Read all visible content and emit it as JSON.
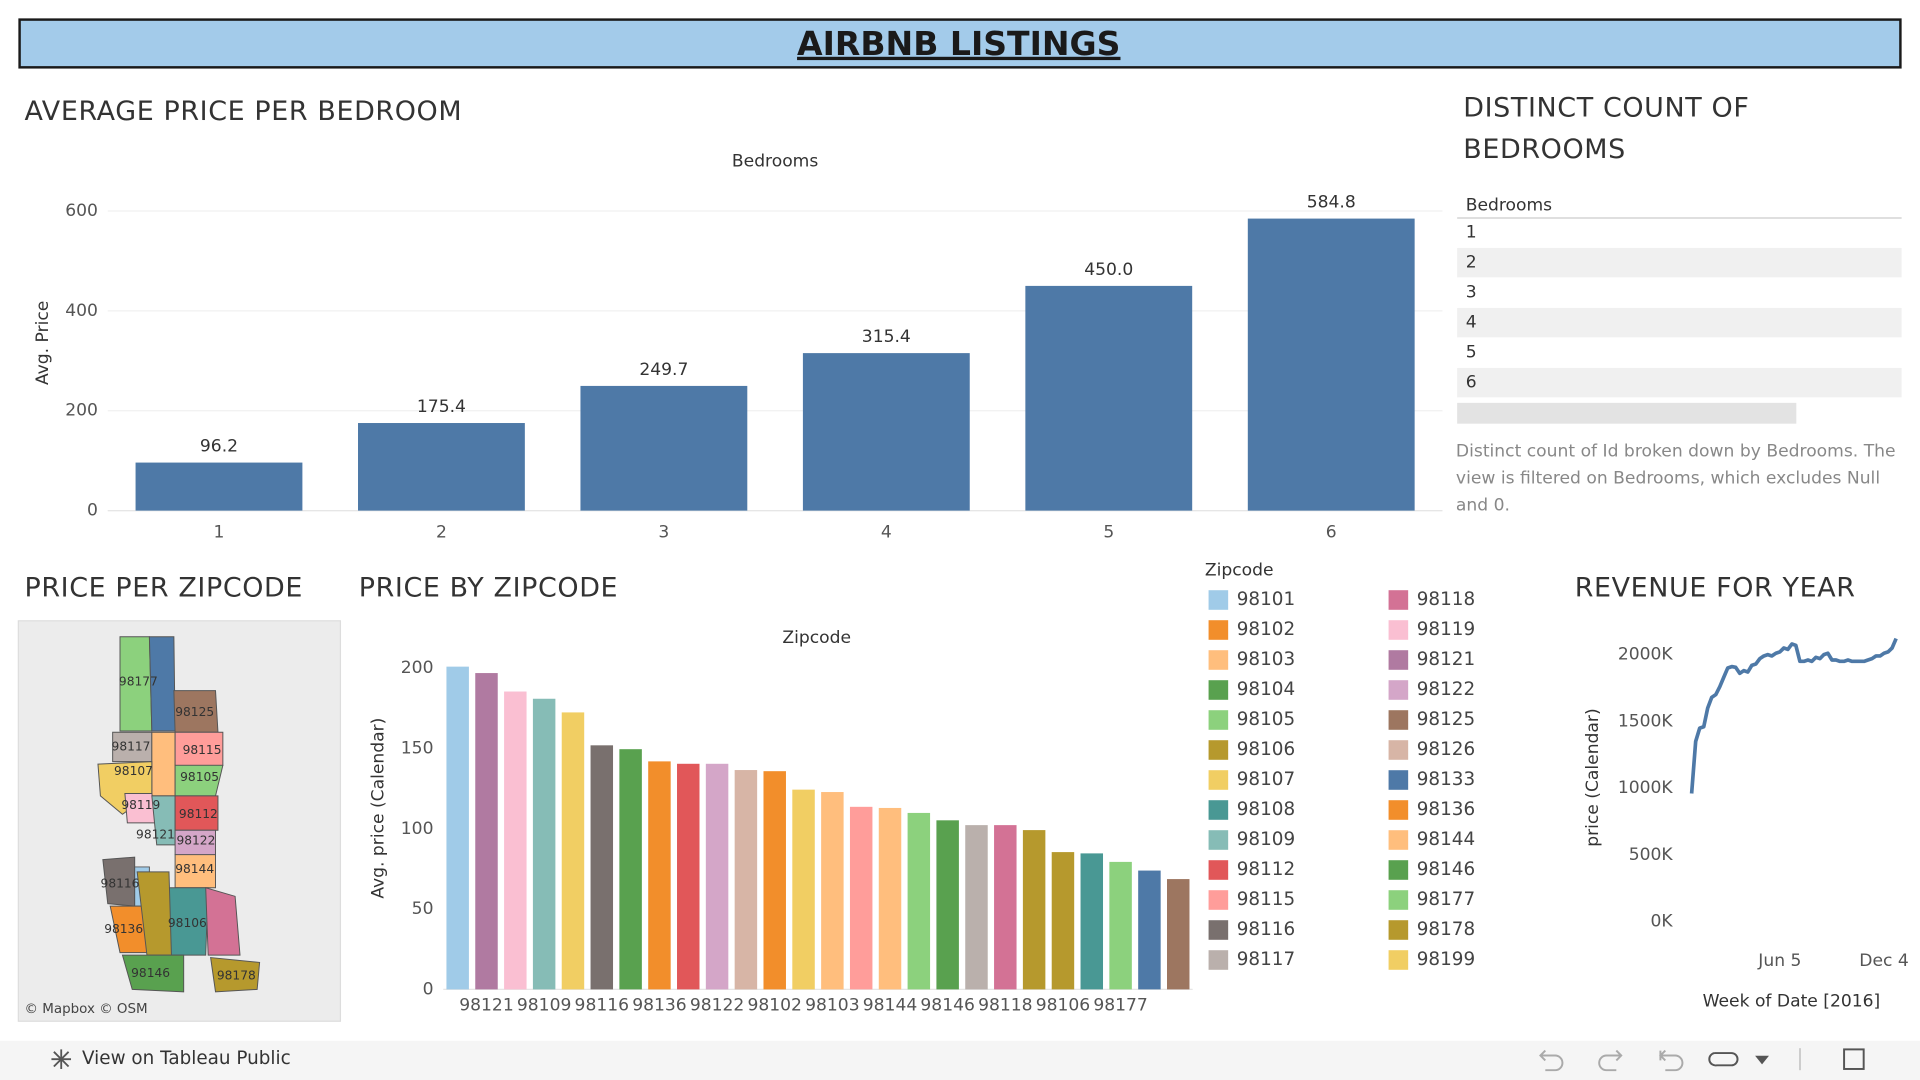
{
  "header": {
    "title": "AIRBNB LISTINGS"
  },
  "chart_data": [
    {
      "type": "bar",
      "title": "AVERAGE PRICE PER BEDROOM",
      "x_label": "Bedrooms",
      "y_label": "Avg. Price",
      "categories": [
        1,
        2,
        3,
        4,
        5,
        6
      ],
      "values": [
        96.2,
        175.4,
        249.7,
        315.4,
        450.0,
        584.8
      ],
      "value_labels": [
        "96.2",
        "175.4",
        "249.7",
        "315.4",
        "450.0",
        "584.8"
      ],
      "color": "#4e79a7",
      "ylim": [
        0,
        640
      ],
      "yticks": [
        0,
        200,
        400,
        600
      ],
      "grid": true
    },
    {
      "type": "bar",
      "title": "PRICE BY ZIPCODE",
      "x_label": "Zipcode",
      "y_label": "Avg. price (Calendar)",
      "categories": [
        null,
        "98121",
        null,
        "98109",
        null,
        "98116",
        null,
        "98136",
        null,
        "98122",
        null,
        "98102",
        null,
        "98103",
        null,
        "98144",
        null,
        "98146",
        null,
        "98118",
        null,
        "98106",
        null,
        "98177",
        null,
        null
      ],
      "values": [
        201,
        197,
        185.5,
        181,
        172.5,
        152,
        149.6,
        142,
        140.5,
        140.5,
        136.6,
        135.9,
        124.4,
        122.9,
        113.7,
        113,
        109.9,
        105.3,
        102.3,
        102.3,
        99.2,
        85.5,
        84.7,
        79.4,
        74,
        68.7
      ],
      "colors": [
        "#a0cbe8",
        "#b07aa1",
        "#fabfd2",
        "#86bcb6",
        "#f1ce63",
        "#79706e",
        "#59a14f",
        "#f28e2b",
        "#e15759",
        "#d4a6c8",
        "#d7b5a6",
        "#f28e2b",
        "#f1ce63",
        "#ffbe7d",
        "#ff9d9a",
        "#ffbe7d",
        "#8cd17d",
        "#59a14f",
        "#bab0ac",
        "#d37295",
        "#b6992d",
        "#b6992d",
        "#499894",
        "#8cd17d",
        "#4e79a7",
        "#9d7660"
      ],
      "ylim": [
        0,
        212
      ],
      "yticks": [
        0,
        50,
        100,
        150,
        200
      ],
      "grid": false,
      "legend_title": "Zipcode",
      "legend": [
        {
          "name": "98101",
          "color": "#a0cbe8"
        },
        {
          "name": "98102",
          "color": "#f28e2b"
        },
        {
          "name": "98103",
          "color": "#ffbe7d"
        },
        {
          "name": "98104",
          "color": "#59a14f"
        },
        {
          "name": "98105",
          "color": "#8cd17d"
        },
        {
          "name": "98106",
          "color": "#b6992d"
        },
        {
          "name": "98107",
          "color": "#f1ce63"
        },
        {
          "name": "98108",
          "color": "#499894"
        },
        {
          "name": "98109",
          "color": "#86bcb6"
        },
        {
          "name": "98112",
          "color": "#e15759"
        },
        {
          "name": "98115",
          "color": "#ff9d9a"
        },
        {
          "name": "98116",
          "color": "#79706e"
        },
        {
          "name": "98117",
          "color": "#bab0ac"
        },
        {
          "name": "98118",
          "color": "#d37295"
        },
        {
          "name": "98119",
          "color": "#fabfd2"
        },
        {
          "name": "98121",
          "color": "#b07aa1"
        },
        {
          "name": "98122",
          "color": "#d4a6c8"
        },
        {
          "name": "98125",
          "color": "#9d7660"
        },
        {
          "name": "98126",
          "color": "#d7b5a6"
        },
        {
          "name": "98133",
          "color": "#4e79a7"
        },
        {
          "name": "98136",
          "color": "#f28e2b"
        },
        {
          "name": "98144",
          "color": "#ffbe7d"
        },
        {
          "name": "98146",
          "color": "#59a14f"
        },
        {
          "name": "98177",
          "color": "#8cd17d"
        },
        {
          "name": "98178",
          "color": "#b6992d"
        },
        {
          "name": "98199",
          "color": "#f1ce63"
        }
      ]
    },
    {
      "type": "line",
      "title": "REVENUE FOR YEAR",
      "x_label": "Week of Date [2016]",
      "y_label": "price (Calendar)",
      "x": [
        "2016-01-03",
        "2016-01-10",
        "2016-01-17",
        "2016-01-24",
        "2016-01-31",
        "2016-02-07",
        "2016-02-14",
        "2016-02-21",
        "2016-02-28",
        "2016-03-06",
        "2016-03-13",
        "2016-03-20",
        "2016-03-27",
        "2016-04-03",
        "2016-04-10",
        "2016-04-17",
        "2016-04-24",
        "2016-05-01",
        "2016-05-08",
        "2016-05-15",
        "2016-05-22",
        "2016-05-29",
        "2016-06-05",
        "2016-06-12",
        "2016-06-19",
        "2016-06-26",
        "2016-07-03",
        "2016-07-10",
        "2016-07-17",
        "2016-07-24",
        "2016-07-31",
        "2016-08-07",
        "2016-08-14",
        "2016-08-21",
        "2016-08-28",
        "2016-09-04",
        "2016-09-11",
        "2016-09-18",
        "2016-09-25",
        "2016-10-02",
        "2016-10-09",
        "2016-10-16",
        "2016-10-23",
        "2016-10-30",
        "2016-11-06",
        "2016-11-13",
        "2016-11-20",
        "2016-11-27",
        "2016-12-04",
        "2016-12-11",
        "2016-12-18",
        "2016-12-25"
      ],
      "values": [
        960000,
        1350000,
        1450000,
        1460000,
        1600000,
        1680000,
        1700000,
        1760000,
        1830000,
        1900000,
        1910000,
        1905000,
        1860000,
        1880000,
        1870000,
        1920000,
        1930000,
        1970000,
        1990000,
        2000000,
        1990000,
        2010000,
        2020000,
        2050000,
        2040000,
        2080000,
        2070000,
        1950000,
        1950000,
        1960000,
        1950000,
        1980000,
        1970000,
        2000000,
        2010000,
        1960000,
        1960000,
        1950000,
        1950000,
        1960000,
        1950000,
        1950000,
        1950000,
        1950000,
        1960000,
        1970000,
        1990000,
        1990000,
        2010000,
        2020000,
        2050000,
        2120000
      ],
      "color": "#4e79a7",
      "xlim": [
        "2015-12-20",
        "2017-01-08"
      ],
      "xticks": [
        {
          "value": "2016-06-05",
          "label": "Jun 5"
        },
        {
          "value": "2016-12-04",
          "label": "Dec 4"
        }
      ],
      "ylim": [
        -140000,
        2180000
      ],
      "yticks": [
        {
          "value": 0,
          "label": "0K"
        },
        {
          "value": 500000,
          "label": "500K"
        },
        {
          "value": 1000000,
          "label": "1000K"
        },
        {
          "value": 1500000,
          "label": "1500K"
        },
        {
          "value": 2000000,
          "label": "2000K"
        }
      ]
    }
  ],
  "table": {
    "title": "DISTINCT COUNT OF BEDROOMS",
    "header": "Bedrooms",
    "rows": [
      1,
      2,
      3,
      4,
      5,
      6
    ],
    "note": "Distinct count of Id broken down by Bedrooms. The view is filtered on Bedrooms, which excludes Null and 0."
  },
  "map": {
    "title": "PRICE PER ZIPCODE",
    "labels": [
      "98177",
      "98125",
      "98117",
      "98115",
      "98107",
      "98105",
      "98119",
      "98112",
      "98121",
      "98122",
      "98144",
      "98116",
      "98106",
      "98136",
      "98146",
      "98178"
    ],
    "attribution": "© Mapbox © OSM"
  },
  "footer": {
    "link": "View on Tableau Public"
  }
}
